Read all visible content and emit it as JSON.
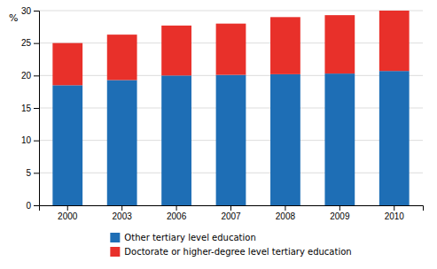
{
  "chart_data": {
    "type": "bar",
    "stacked": true,
    "ylabel": "%",
    "categories": [
      "2000",
      "2003",
      "2006",
      "2007",
      "2008",
      "2009",
      "2010"
    ],
    "series": [
      {
        "name": "Other tertiary level education",
        "color": "#1e6eb5",
        "values": [
          18.5,
          19.3,
          20.0,
          20.1,
          20.2,
          20.3,
          20.7
        ]
      },
      {
        "name": "Doctorate or higher-degree level tertiary education",
        "color": "#e8302a",
        "values": [
          6.5,
          7.0,
          7.7,
          7.9,
          8.8,
          9.0,
          9.3
        ]
      }
    ],
    "ylim": [
      0,
      30
    ],
    "yticks": [
      0,
      5,
      10,
      15,
      20,
      25,
      30
    ],
    "grid": true,
    "legend": "bottom"
  }
}
